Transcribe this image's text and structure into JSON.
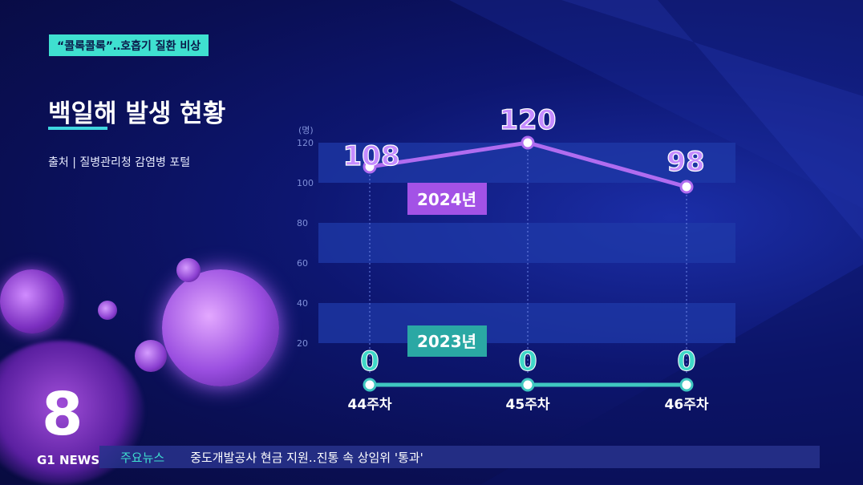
{
  "topic": "“콜록콜록”‥호흡기 질환 비상",
  "title": "백일해 발생 현황",
  "source": "출처 | 질병관리청 감염병 포털",
  "brand": {
    "logo_mark": "8",
    "name": "G1 NEWS"
  },
  "ticker": {
    "label": "주요뉴스",
    "text": "중도개발공사 현금 지원‥진통 속 상임위 '통과'"
  },
  "colors": {
    "series_2024": "#b06cf0",
    "series_2023": "#3fc7c0",
    "band": "#1f3aa8"
  },
  "chart_data": {
    "type": "line",
    "unit": "(명)",
    "categories": [
      "44주차",
      "45주차",
      "46주차"
    ],
    "yticks": [
      "20",
      "40",
      "60",
      "80",
      "100",
      "120"
    ],
    "ylim": [
      10,
      120
    ],
    "series": [
      {
        "name": "2024년",
        "values": [
          108,
          120,
          98
        ],
        "labels": [
          "108",
          "120",
          "98"
        ]
      },
      {
        "name": "2023년",
        "values": [
          0,
          0,
          0
        ],
        "labels": [
          "0",
          "0",
          "0"
        ]
      }
    ],
    "grid": "horizontal bands"
  }
}
